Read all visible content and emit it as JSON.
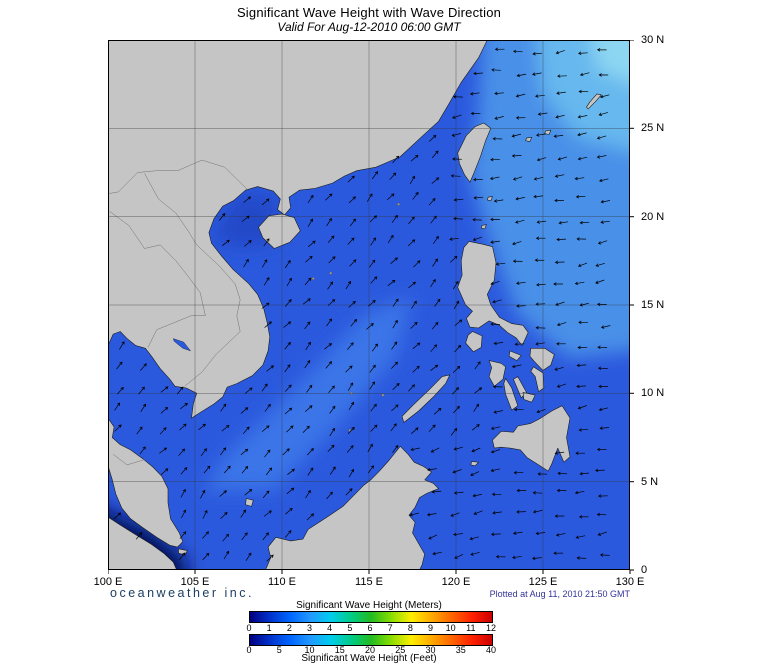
{
  "header": {
    "title": "Significant Wave Height with Wave Direction",
    "subtitle": "Valid For Aug-12-2010 06:00 GMT"
  },
  "map": {
    "lat_labels": [
      "30 N",
      "25 N",
      "20 N",
      "15 N",
      "10 N",
      "5 N",
      "0"
    ],
    "lon_labels": [
      "100 E",
      "105 E",
      "110 E",
      "115 E",
      "120 E",
      "125 E",
      "130 E"
    ]
  },
  "footer": {
    "brand": "oceanweather inc.",
    "plotted_at": "Plotted at Aug 11, 2010 21:50 GMT"
  },
  "legend": {
    "meters_label": "Significant Wave Height (Meters)",
    "feet_label": "Significant Wave Height (Feet)",
    "meters_ticks": [
      "0",
      "1",
      "2",
      "3",
      "4",
      "5",
      "6",
      "7",
      "8",
      "9",
      "10",
      "11",
      "12"
    ],
    "feet_ticks": [
      "0",
      "5",
      "10",
      "15",
      "20",
      "25",
      "30",
      "35",
      "40"
    ],
    "colors": [
      "#000080",
      "#0033cc",
      "#0066ff",
      "#2299ff",
      "#00ccee",
      "#00cc88",
      "#22bb22",
      "#88dd00",
      "#ffee00",
      "#ffaa00",
      "#ff6600",
      "#ff2200",
      "#cc0000"
    ]
  },
  "map_colors": {
    "ocean_base": "#2b59dd",
    "land": "#c5c5c5",
    "coast": "#1a1a1a",
    "grid": "#333333",
    "arrow": "#000000"
  },
  "ocean_regions": {
    "pacific": "#4a90e8",
    "pacific_ne": "#66b8ee",
    "pacific_corner": "#8dd6f2",
    "scs_band": "#3b74e8",
    "tonkin": "#2149c8",
    "strait_dark": "#001158",
    "strait_darkest": "#000a38"
  }
}
